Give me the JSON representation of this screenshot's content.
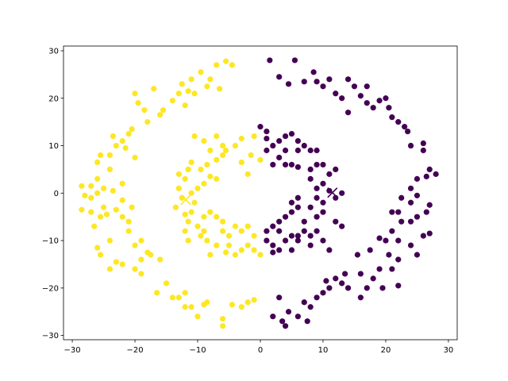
{
  "chart_data": {
    "type": "scatter",
    "title": "",
    "xlabel": "",
    "ylabel": "",
    "xlim": [
      -31.4,
      31.4
    ],
    "ylim": [
      -30.9,
      31.0
    ],
    "xticks": [
      -30,
      -20,
      -10,
      0,
      10,
      20,
      30
    ],
    "yticks": [
      -30,
      -20,
      -10,
      0,
      10,
      20,
      30
    ],
    "grid": false,
    "colors": {
      "cluster_0": "#440154",
      "cluster_1": "#fde725"
    },
    "series": [
      {
        "cluster": 1,
        "color": "#fde725",
        "points": [
          [
            -5.5,
            27.8
          ],
          [
            -4.5,
            27
          ],
          [
            -7,
            27
          ],
          [
            -9.5,
            25.5
          ],
          [
            -11,
            24
          ],
          [
            -12.5,
            23
          ],
          [
            -13,
            21
          ],
          [
            -14,
            19.5
          ],
          [
            -15.5,
            17.5
          ],
          [
            -16,
            16.5
          ],
          [
            -18,
            15
          ],
          [
            -20.5,
            13.5
          ],
          [
            -21,
            12.5
          ],
          [
            -22,
            11
          ],
          [
            -23,
            10
          ],
          [
            -24,
            8
          ],
          [
            -25.5,
            8
          ],
          [
            -26,
            6.5
          ],
          [
            -26,
            3
          ],
          [
            -27,
            1.5
          ],
          [
            -28.5,
            1.5
          ],
          [
            -28,
            -0.5
          ],
          [
            -27,
            -1
          ],
          [
            -26,
            0
          ],
          [
            -25,
            1
          ],
          [
            -23.5,
            0.5
          ],
          [
            -22,
            -1.5
          ],
          [
            -23,
            -3.5
          ],
          [
            -25,
            -3
          ],
          [
            -27,
            -4
          ],
          [
            -28.5,
            -3.5
          ],
          [
            -26.5,
            -7
          ],
          [
            -25.5,
            -5
          ],
          [
            -24.5,
            -4.5
          ],
          [
            -22,
            -5
          ],
          [
            -21,
            -8
          ],
          [
            -20,
            -11
          ],
          [
            -18,
            -12.5
          ],
          [
            -17.5,
            -13
          ],
          [
            -19,
            -14
          ],
          [
            -22,
            -15
          ],
          [
            -24,
            -16
          ],
          [
            -25.5,
            -13
          ],
          [
            -26,
            -11.5
          ],
          [
            -20,
            -16
          ],
          [
            -19,
            -17
          ],
          [
            -16,
            -14
          ],
          [
            -15,
            -19
          ],
          [
            -14,
            -22
          ],
          [
            -13,
            -22
          ],
          [
            -12,
            -21
          ],
          [
            -11,
            -24
          ],
          [
            -9,
            -23.5
          ],
          [
            -8.5,
            -23
          ],
          [
            -6,
            -26.5
          ],
          [
            -6,
            -28
          ],
          [
            -4.5,
            -23.5
          ],
          [
            -3,
            -24
          ],
          [
            -1,
            -22.5
          ],
          [
            -2,
            -23
          ],
          [
            -10,
            -26
          ],
          [
            -16.5,
            -21
          ],
          [
            -12,
            -24
          ],
          [
            -23,
            -14.5
          ],
          [
            -19,
            -10
          ],
          [
            -21,
            -6
          ],
          [
            -24,
            -10
          ],
          [
            -22,
            2
          ],
          [
            -24,
            5
          ],
          [
            -20.5,
            -3
          ],
          [
            -11.5,
            21.5
          ],
          [
            -12,
            18.5
          ],
          [
            -10.5,
            21
          ],
          [
            -8.5,
            22.5
          ],
          [
            -8,
            24
          ],
          [
            -6.5,
            22
          ],
          [
            -17,
            22
          ],
          [
            -19.5,
            19
          ],
          [
            -20,
            21
          ],
          [
            -18.5,
            17.5
          ],
          [
            -21.5,
            9.5
          ],
          [
            -23.5,
            12
          ],
          [
            -20,
            7.5
          ],
          [
            -1,
            12
          ],
          [
            -3,
            11.5
          ],
          [
            -4,
            10
          ],
          [
            -5.5,
            9
          ],
          [
            -6,
            8
          ],
          [
            -7,
            7
          ],
          [
            -8,
            9
          ],
          [
            -8.5,
            6
          ],
          [
            -9.5,
            5
          ],
          [
            -11,
            6.5
          ],
          [
            -11.5,
            5
          ],
          [
            -13,
            4
          ],
          [
            -12,
            3
          ],
          [
            -13,
            1
          ],
          [
            -12.5,
            -1
          ],
          [
            -11,
            0
          ],
          [
            -10,
            1
          ],
          [
            -9,
            2
          ],
          [
            -8,
            3.5
          ],
          [
            -7,
            3
          ],
          [
            -10.5,
            -2
          ],
          [
            -11,
            -4
          ],
          [
            -12,
            -4.5
          ],
          [
            -13.5,
            -3
          ],
          [
            -11.5,
            -6
          ],
          [
            -10,
            -7
          ],
          [
            -9,
            -5
          ],
          [
            -8,
            -4
          ],
          [
            -7,
            -5
          ],
          [
            -6,
            -6
          ],
          [
            -9,
            -8
          ],
          [
            -9.5,
            -9
          ],
          [
            -8.5,
            -10
          ],
          [
            -7,
            -11
          ],
          [
            -6,
            -8
          ],
          [
            -5,
            -9
          ],
          [
            -4,
            -7
          ],
          [
            -3,
            -8
          ],
          [
            -2,
            -7
          ],
          [
            -1,
            -9
          ],
          [
            -2,
            -11
          ],
          [
            -3,
            -12
          ],
          [
            -1,
            -12
          ],
          [
            0,
            -13
          ],
          [
            -4,
            -13
          ],
          [
            -5.5,
            -12.5
          ],
          [
            -1.5,
            8
          ],
          [
            -3,
            6.5
          ],
          [
            0,
            7
          ],
          [
            -2,
            4
          ],
          [
            -9,
            11
          ],
          [
            -10.5,
            12
          ],
          [
            -7,
            12
          ],
          [
            -6,
            10
          ],
          [
            -12,
            -8
          ],
          [
            -11.5,
            -10
          ],
          [
            -8,
            -13
          ],
          [
            -5,
            -11
          ]
        ],
        "centroid": [
          -11.9,
          -1.4
        ]
      },
      {
        "cluster": 0,
        "color": "#440154",
        "points": [
          [
            1.5,
            28
          ],
          [
            5.5,
            28
          ],
          [
            4.5,
            23
          ],
          [
            8.5,
            25.5
          ],
          [
            9,
            23.5
          ],
          [
            10,
            22.5
          ],
          [
            11,
            24
          ],
          [
            12,
            21
          ],
          [
            13,
            20
          ],
          [
            14,
            24
          ],
          [
            15,
            22.5
          ],
          [
            16,
            20.5
          ],
          [
            17,
            19
          ],
          [
            18,
            18
          ],
          [
            19,
            19.5
          ],
          [
            20,
            20
          ],
          [
            20.5,
            18
          ],
          [
            21,
            16
          ],
          [
            22,
            15
          ],
          [
            23,
            14
          ],
          [
            23.5,
            13
          ],
          [
            24,
            10
          ],
          [
            26,
            10.5
          ],
          [
            26,
            9
          ],
          [
            27,
            5
          ],
          [
            28,
            4
          ],
          [
            26.5,
            3.5
          ],
          [
            25,
            3
          ],
          [
            24,
            1
          ],
          [
            25,
            -0.5
          ],
          [
            24,
            -2
          ],
          [
            27,
            -2.5
          ],
          [
            26.5,
            -4
          ],
          [
            25,
            -5
          ],
          [
            24,
            -6
          ],
          [
            22,
            -4
          ],
          [
            21,
            -4
          ],
          [
            22.5,
            -6
          ],
          [
            21,
            -8
          ],
          [
            19,
            -9.5
          ],
          [
            20,
            -10
          ],
          [
            22,
            -10
          ],
          [
            24,
            -11
          ],
          [
            26,
            -9
          ],
          [
            27,
            -8.5
          ],
          [
            25,
            -13
          ],
          [
            22,
            -14
          ],
          [
            20.5,
            -13
          ],
          [
            21,
            -16
          ],
          [
            19,
            -16
          ],
          [
            18,
            -18
          ],
          [
            17,
            -20
          ],
          [
            16,
            -17
          ],
          [
            14,
            -20
          ],
          [
            13,
            -19
          ],
          [
            12,
            -18
          ],
          [
            11,
            -20
          ],
          [
            10,
            -21
          ],
          [
            9,
            -22
          ],
          [
            8,
            -24
          ],
          [
            7,
            -23
          ],
          [
            6,
            -26
          ],
          [
            7.5,
            -27
          ],
          [
            4.5,
            -25
          ],
          [
            3,
            -22
          ],
          [
            3.5,
            -27
          ],
          [
            4,
            -28
          ],
          [
            2,
            -26
          ],
          [
            10.5,
            -18.5
          ],
          [
            15.5,
            -13
          ],
          [
            17.5,
            -12
          ],
          [
            19.5,
            -20
          ],
          [
            22,
            -19.5
          ],
          [
            7,
            23.5
          ],
          [
            3,
            24.5
          ],
          [
            17,
            22.5
          ],
          [
            14,
            17
          ],
          [
            22.5,
            -1
          ],
          [
            16,
            -22
          ],
          [
            13.5,
            -17
          ],
          [
            0,
            14
          ],
          [
            1,
            13
          ],
          [
            1,
            11.5
          ],
          [
            2,
            10
          ],
          [
            3,
            11
          ],
          [
            4,
            12
          ],
          [
            5,
            12.5
          ],
          [
            6,
            11
          ],
          [
            7,
            10
          ],
          [
            8,
            9
          ],
          [
            9,
            9
          ],
          [
            6,
            9
          ],
          [
            4,
            9
          ],
          [
            3,
            7.5
          ],
          [
            1,
            9
          ],
          [
            2,
            6
          ],
          [
            4,
            6
          ],
          [
            5,
            6
          ],
          [
            6,
            5.5
          ],
          [
            8,
            5
          ],
          [
            9,
            6
          ],
          [
            10,
            6
          ],
          [
            11,
            4
          ],
          [
            12,
            5
          ],
          [
            8,
            3
          ],
          [
            9,
            1
          ],
          [
            10,
            2
          ],
          [
            9,
            -1
          ],
          [
            10,
            -2
          ],
          [
            8,
            -3
          ],
          [
            10,
            -4
          ],
          [
            9,
            -5
          ],
          [
            7,
            -6
          ],
          [
            6,
            -3
          ],
          [
            5,
            -2
          ],
          [
            6,
            -1
          ],
          [
            5,
            -4
          ],
          [
            4,
            -5
          ],
          [
            3,
            -6
          ],
          [
            2,
            -7
          ],
          [
            1,
            -8
          ],
          [
            1,
            -10
          ],
          [
            2,
            -11
          ],
          [
            3,
            -12
          ],
          [
            4,
            -10
          ],
          [
            5,
            -9
          ],
          [
            6,
            -9
          ],
          [
            7,
            -8
          ],
          [
            8,
            -9
          ],
          [
            9,
            -8
          ],
          [
            10,
            -10
          ],
          [
            11,
            -12
          ],
          [
            13,
            -7
          ],
          [
            12,
            -6
          ],
          [
            8,
            -11
          ],
          [
            5,
            -12
          ],
          [
            6,
            -10
          ],
          [
            3,
            -8
          ],
          [
            2,
            -12.5
          ],
          [
            12,
            -1
          ],
          [
            13,
            0
          ],
          [
            11,
            0.5
          ]
        ],
        "centroid": [
          11.5,
          0.1
        ]
      }
    ]
  }
}
